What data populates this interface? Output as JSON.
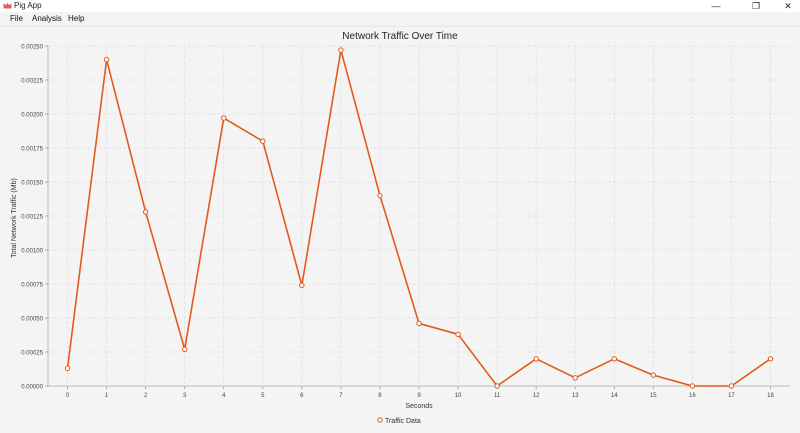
{
  "window": {
    "title": "Pig App",
    "controls": [
      "—",
      "❐",
      "✕"
    ]
  },
  "menu": {
    "items": [
      "File",
      "Analysis",
      "Help"
    ]
  },
  "colors": {
    "series": "#e35a1c",
    "grid": "#dedede",
    "background": "#f4f4f4"
  },
  "chart_data": {
    "type": "line",
    "title": "Network Traffic Over Time",
    "xlabel": "Seconds",
    "ylabel": "Total Network Traffic (Mb)",
    "x_ticks": [
      "0",
      "1",
      "2",
      "3",
      "4",
      "5",
      "6",
      "7",
      "8",
      "9",
      "10",
      "11",
      "12",
      "13",
      "14",
      "15",
      "16",
      "17",
      "18"
    ],
    "y_ticks": [
      "0.00000",
      "0.00025",
      "0.00050",
      "0.00075",
      "0.00100",
      "0.00125",
      "0.00150",
      "0.00175",
      "0.00200",
      "0.00225",
      "0.00250"
    ],
    "xlim": [
      -0.5,
      18.5
    ],
    "ylim": [
      0,
      0.0025
    ],
    "grid": true,
    "legend_position": "bottom-center",
    "series": [
      {
        "name": "Traffic Data",
        "x": [
          0,
          1,
          2,
          3,
          4,
          5,
          6,
          7,
          8,
          9,
          10,
          11,
          12,
          13,
          14,
          15,
          16,
          17,
          18
        ],
        "values": [
          0.00013,
          0.0024,
          0.00128,
          0.00027,
          0.00197,
          0.0018,
          0.00074,
          0.00247,
          0.0014,
          0.00046,
          0.00038,
          0.0,
          0.0002,
          6e-05,
          0.0002,
          8e-05,
          0.0,
          0.0,
          0.0002
        ]
      }
    ]
  }
}
